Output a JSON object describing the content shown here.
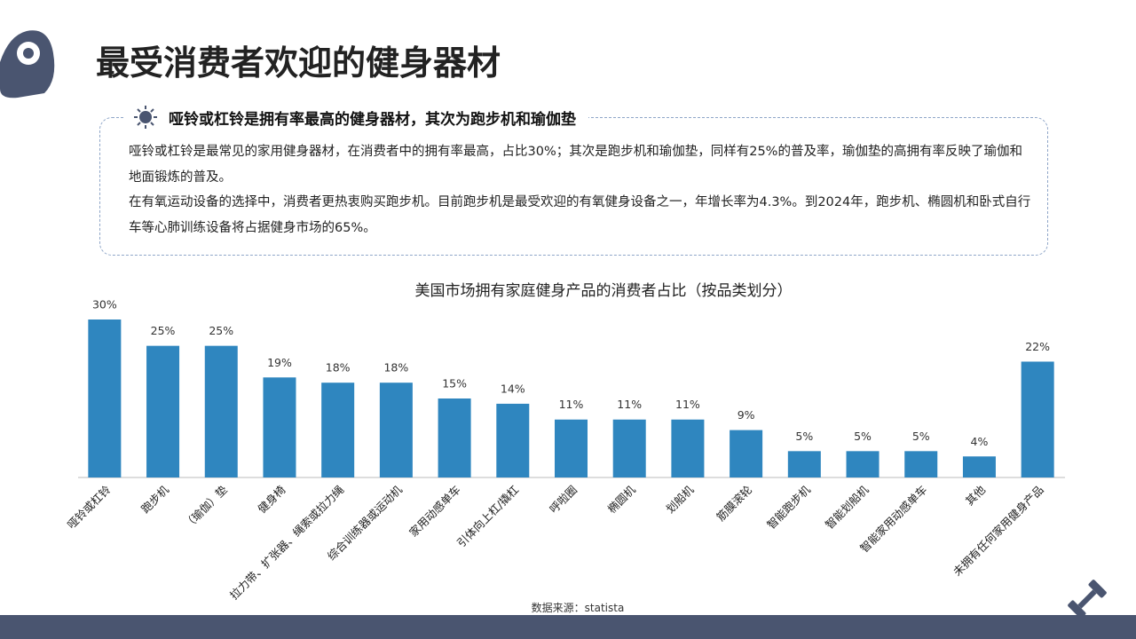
{
  "header": {
    "title": "最受消费者欢迎的健身器材"
  },
  "callout": {
    "heading": "哑铃或杠铃是拥有率最高的健身器材，其次为跑步机和瑜伽垫",
    "paragraphs": [
      "哑铃或杠铃是最常见的家用健身器材，在消费者中的拥有率最高，占比30%；其次是跑步机和瑜伽垫，同样有25%的普及率，瑜伽垫的高拥有率反映了瑜伽和地面锻炼的普及。",
      "在有氧运动设备的选择中，消费者更热衷购买跑步机。目前跑步机是最受欢迎的有氧健身设备之一，年增长率为4.3%。到2024年，跑步机、椭圆机和卧式自行车等心肺训练设备将占据健身市场的65%。"
    ]
  },
  "chart_data": {
    "type": "bar",
    "title": "美国市场拥有家庭健身产品的消费者占比（按品类划分）",
    "categories": [
      "哑铃或杠铃",
      "跑步机",
      "（瑜伽）垫",
      "健身椅",
      "拉力带、扩张器、绳索或拉力绳",
      "综合训练器或运动机",
      "家用动感单车",
      "引体向上杠/撬杠",
      "呼啦圈",
      "椭圆机",
      "划船机",
      "筋膜滚轮",
      "智能跑步机",
      "智能划船机",
      "智能家用动感单车",
      "其他",
      "未拥有任何家用健身产品"
    ],
    "values": [
      30,
      25,
      25,
      19,
      18,
      18,
      15,
      14,
      11,
      11,
      11,
      9,
      5,
      5,
      5,
      4,
      22
    ],
    "value_labels": [
      "30%",
      "25%",
      "25%",
      "19%",
      "18%",
      "18%",
      "15%",
      "14%",
      "11%",
      "11%",
      "11%",
      "9%",
      "5%",
      "5%",
      "5%",
      "4%",
      "22%"
    ],
    "color": "#2f86bf"
  },
  "source": "数据来源：statista"
}
